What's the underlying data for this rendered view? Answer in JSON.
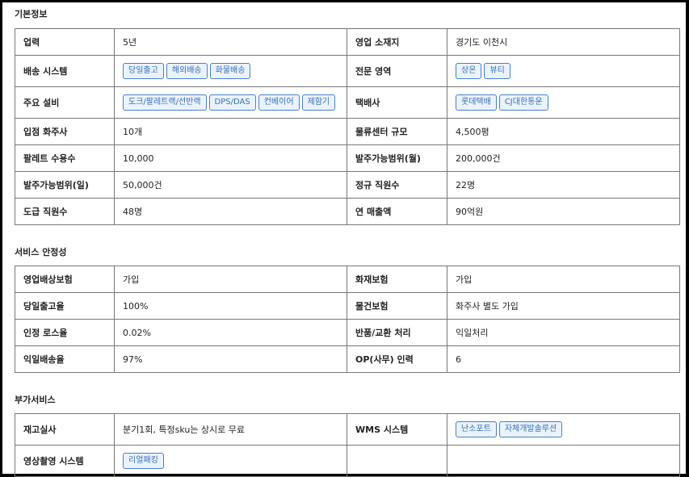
{
  "sections": [
    {
      "title": "기본정보",
      "rows": [
        {
          "l1": "업력",
          "v1": "5년",
          "l2": "영업 소재지",
          "v2": "경기도 이천시"
        },
        {
          "l1": "배송 시스템",
          "t1": [
            "당일출고",
            "해외배송",
            "화물배송"
          ],
          "l2": "전문 영역",
          "t2": [
            "상온",
            "뷰티"
          ]
        },
        {
          "l1": "주요 설비",
          "t1": [
            "도크/팔레트랙/선반랙",
            "DPS/DAS",
            "컨베이어",
            "제함기"
          ],
          "l2": "택배사",
          "t2": [
            "롯데택배",
            "CJ대한통운"
          ]
        },
        {
          "l1": "입점 화주사",
          "v1": "10개",
          "l2": "물류센터 규모",
          "v2": "4,500평"
        },
        {
          "l1": "팔레트 수용수",
          "v1": "10,000",
          "l2": "발주가능범위(월)",
          "v2": "200,000건"
        },
        {
          "l1": "발주가능범위(일)",
          "v1": "50,000건",
          "l2": "정규 직원수",
          "v2": "22명"
        },
        {
          "l1": "도급 직원수",
          "v1": "48명",
          "l2": "연 매출액",
          "v2": "90억원"
        }
      ]
    },
    {
      "title": "서비스 안정성",
      "rows": [
        {
          "l1": "영업배상보험",
          "v1": "가입",
          "l2": "화재보험",
          "v2": "가입"
        },
        {
          "l1": "당일출고율",
          "v1": "100%",
          "l2": "물건보험",
          "v2": "화주사 별도 가입"
        },
        {
          "l1": "인정 로스율",
          "v1": "0.02%",
          "l2": "반품/교환 처리",
          "v2": "익일처리"
        },
        {
          "l1": "익일배송율",
          "v1": "97%",
          "l2": "OP(사무) 인력",
          "v2": "6"
        }
      ]
    },
    {
      "title": "부가서비스",
      "rows": [
        {
          "l1": "재고실사",
          "v1": "분기1회, 특정sku는 상시로 무료",
          "l2": "WMS 시스템",
          "t2": [
            "난소포트",
            "자체개발솔루션"
          ]
        },
        {
          "l1": "영상촬영 시스템",
          "t1": [
            "리얼패킹"
          ],
          "l2": "",
          "v2": ""
        }
      ]
    }
  ],
  "colors": {
    "tag_border": "#4a7fc9",
    "tag_bg": "#eaf3fd",
    "tag_text": "#3b6fb8"
  }
}
